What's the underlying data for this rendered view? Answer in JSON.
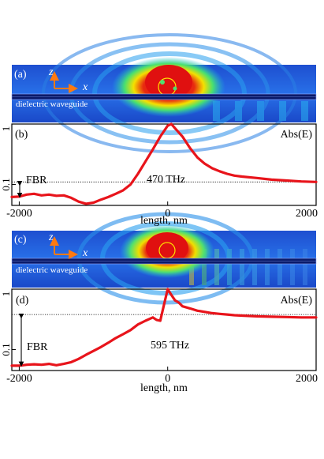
{
  "figure": {
    "panel_a": {
      "label": "(a)",
      "axis_z": "z",
      "axis_x": "x",
      "waveguide_label": "dielectric waveguide"
    },
    "panel_c": {
      "label": "(c)",
      "axis_z": "z",
      "axis_x": "x",
      "waveguide_label": "dielectric waveguide"
    }
  },
  "chart_data": [
    {
      "type": "line",
      "panel_label": "(b)",
      "legend": "Abs(E)",
      "annotation": "470 THz",
      "fbr_label": "FBR",
      "xlabel": "length, nm",
      "ylabel": "",
      "x_ticks": [
        "-2000",
        "0",
        "2000"
      ],
      "y_ticks": [
        "1",
        "0.1"
      ],
      "y_scale": "log",
      "xlim": [
        -2100,
        2000
      ],
      "ylim": [
        0.045,
        1.0
      ],
      "reference_line_y": 0.11,
      "series": [
        {
          "color": "#e8141b",
          "x": [
            -2100,
            -2000,
            -1900,
            -1800,
            -1700,
            -1600,
            -1500,
            -1400,
            -1300,
            -1200,
            -1100,
            -1000,
            -900,
            -800,
            -700,
            -600,
            -500,
            -400,
            -300,
            -200,
            -100,
            0,
            50,
            100,
            200,
            300,
            400,
            500,
            600,
            700,
            800,
            900,
            1000,
            1200,
            1400,
            1600,
            1800,
            2000
          ],
          "y": [
            0.062,
            0.063,
            0.068,
            0.07,
            0.066,
            0.068,
            0.065,
            0.066,
            0.06,
            0.052,
            0.048,
            0.05,
            0.056,
            0.062,
            0.07,
            0.08,
            0.1,
            0.15,
            0.24,
            0.38,
            0.62,
            0.94,
            1.0,
            0.85,
            0.62,
            0.4,
            0.28,
            0.22,
            0.185,
            0.165,
            0.15,
            0.14,
            0.135,
            0.128,
            0.12,
            0.116,
            0.112,
            0.11
          ]
        }
      ]
    },
    {
      "type": "line",
      "panel_label": "(d)",
      "legend": "Abs(E)",
      "annotation": "595 THz",
      "fbr_label": "FBR",
      "xlabel": "length, nm",
      "ylabel": "",
      "x_ticks": [
        "-2000",
        "0",
        "2000"
      ],
      "y_ticks": [
        "1",
        "0.1"
      ],
      "y_scale": "log",
      "xlim": [
        -2100,
        2000
      ],
      "ylim": [
        0.045,
        1.0
      ],
      "reference_line_y": 0.38,
      "series": [
        {
          "color": "#e8141b",
          "x": [
            -2100,
            -2000,
            -1900,
            -1800,
            -1700,
            -1600,
            -1500,
            -1400,
            -1300,
            -1200,
            -1100,
            -1000,
            -900,
            -800,
            -700,
            -600,
            -500,
            -400,
            -300,
            -200,
            -150,
            -100,
            -50,
            0,
            50,
            100,
            150,
            200,
            300,
            400,
            500,
            600,
            700,
            800,
            900,
            1000,
            1200,
            1400,
            1600,
            1800,
            2000
          ],
          "y": [
            0.054,
            0.054,
            0.056,
            0.057,
            0.056,
            0.058,
            0.055,
            0.058,
            0.062,
            0.07,
            0.082,
            0.095,
            0.11,
            0.13,
            0.155,
            0.18,
            0.21,
            0.26,
            0.3,
            0.34,
            0.31,
            0.3,
            0.55,
            1.0,
            0.8,
            0.65,
            0.6,
            0.52,
            0.48,
            0.44,
            0.42,
            0.4,
            0.39,
            0.38,
            0.37,
            0.365,
            0.355,
            0.35,
            0.345,
            0.34,
            0.34
          ]
        }
      ]
    }
  ]
}
